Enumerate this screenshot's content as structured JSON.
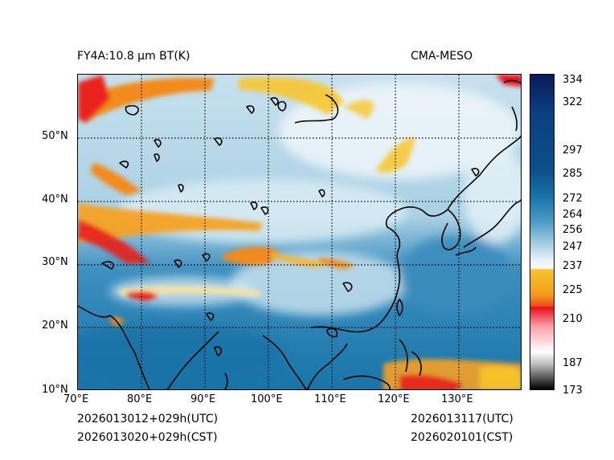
{
  "header": {
    "product": "FY4A:10.8 µm BT(K)",
    "model": "CMA-MESO"
  },
  "footer": {
    "init_utc": "2026013012+029h(UTC)",
    "init_cst": "2026013020+029h(CST)",
    "valid_utc": "2026013117(UTC)",
    "valid_cst": "2026020101(CST)"
  },
  "map": {
    "lon_ticks": [
      "70°E",
      "80°E",
      "90°E",
      "100°E",
      "110°E",
      "120°E",
      "130°E"
    ],
    "lat_ticks": [
      "10°N",
      "20°N",
      "30°N",
      "40°N",
      "50°N"
    ],
    "lon_range": [
      70,
      140
    ],
    "lat_range": [
      10,
      60
    ]
  },
  "colorbar": {
    "labels": [
      "334",
      "322",
      "297",
      "285",
      "272",
      "264",
      "256",
      "247",
      "237",
      "225",
      "210",
      "187",
      "173"
    ],
    "colors": {
      "darkest_navy": "#0a1a5c",
      "deep_blue": "#0b4f8a",
      "ocean_blue": "#1874a8",
      "mid_blue": "#3d8fc0",
      "light_blue": "#8ec2dc",
      "pale_blue": "#c7e1ee",
      "white": "#f5f9fb",
      "yellow": "#f7c52b",
      "orange": "#f08a1a",
      "red": "#e8101a",
      "pink": "#f7b3b8",
      "gray": "#9a9a9a",
      "black": "#000000"
    }
  }
}
